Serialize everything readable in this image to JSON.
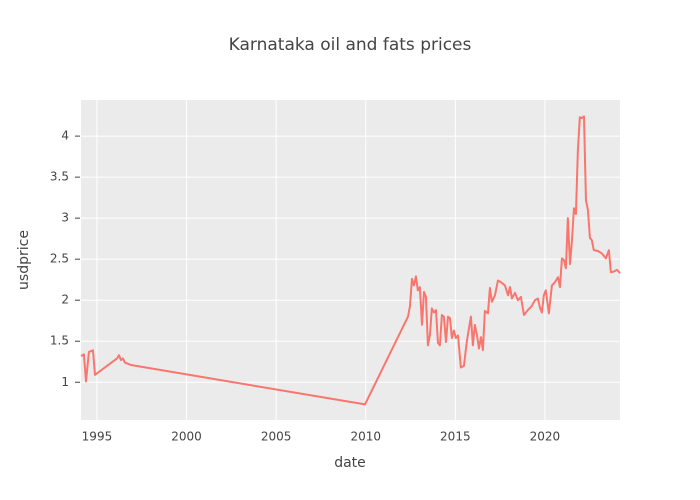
{
  "chart_data": {
    "type": "line",
    "title": "Karnataka oil and fats prices",
    "x_label": "date",
    "y_label": "usdprice",
    "color": "#F8766D",
    "grid": true,
    "xlim": [
      1994.11,
      2024.19
    ],
    "xticks": [
      1995,
      2000,
      2005,
      2010,
      2015,
      2020
    ],
    "ylim": [
      0.54,
      4.44
    ],
    "yticks": [
      1,
      1.5,
      2,
      2.5,
      3,
      3.5,
      4
    ],
    "x": [
      1994.11,
      1994.27,
      1994.39,
      1994.55,
      1994.78,
      1994.89,
      1996.12,
      1996.23,
      1996.34,
      1996.45,
      1996.56,
      1996.79,
      1996.9,
      2009.96,
      2012.36,
      2012.47,
      2012.58,
      2012.69,
      2012.8,
      2012.91,
      2013.02,
      2013.14,
      2013.25,
      2013.36,
      2013.47,
      2013.58,
      2013.69,
      2013.81,
      2013.92,
      2014.03,
      2014.14,
      2014.25,
      2014.36,
      2014.48,
      2014.59,
      2014.7,
      2014.81,
      2014.92,
      2015.03,
      2015.15,
      2015.31,
      2015.48,
      2015.65,
      2015.87,
      2015.98,
      2016.09,
      2016.21,
      2016.32,
      2016.43,
      2016.54,
      2016.65,
      2016.82,
      2016.93,
      2017.04,
      2017.21,
      2017.38,
      2017.54,
      2017.77,
      2017.94,
      2018.05,
      2018.16,
      2018.33,
      2018.49,
      2018.66,
      2018.83,
      2019.05,
      2019.27,
      2019.44,
      2019.61,
      2019.72,
      2019.83,
      2019.94,
      2020.05,
      2020.22,
      2020.39,
      2020.56,
      2020.73,
      2020.84,
      2020.95,
      2021.06,
      2021.17,
      2021.28,
      2021.4,
      2021.51,
      2021.62,
      2021.73,
      2021.84,
      2021.95,
      2022.06,
      2022.18,
      2022.29,
      2022.4,
      2022.51,
      2022.62,
      2022.73,
      2022.96,
      2023.18,
      2023.4,
      2023.57,
      2023.68,
      2023.85,
      2024.02,
      2024.19
    ],
    "values": [
      1.32,
      1.34,
      1.01,
      1.37,
      1.39,
      1.09,
      1.29,
      1.33,
      1.27,
      1.29,
      1.24,
      1.22,
      1.21,
      0.73,
      1.8,
      1.93,
      2.26,
      2.18,
      2.29,
      2.12,
      2.16,
      1.7,
      2.1,
      2.04,
      1.45,
      1.57,
      1.9,
      1.85,
      1.88,
      1.48,
      1.45,
      1.82,
      1.8,
      1.49,
      1.8,
      1.78,
      1.54,
      1.63,
      1.54,
      1.57,
      1.18,
      1.2,
      1.51,
      1.8,
      1.45,
      1.7,
      1.57,
      1.41,
      1.55,
      1.39,
      1.87,
      1.84,
      2.15,
      1.98,
      2.06,
      2.24,
      2.22,
      2.18,
      2.06,
      2.16,
      2.02,
      2.09,
      2.0,
      2.04,
      1.82,
      1.88,
      1.93,
      2.0,
      2.02,
      1.91,
      1.85,
      2.06,
      2.12,
      1.84,
      2.18,
      2.22,
      2.28,
      2.16,
      2.51,
      2.49,
      2.39,
      3.0,
      2.44,
      2.73,
      3.12,
      3.05,
      3.83,
      4.23,
      4.22,
      4.24,
      3.22,
      3.1,
      2.76,
      2.73,
      2.61,
      2.6,
      2.57,
      2.51,
      2.61,
      2.34,
      2.35,
      2.37,
      2.33
    ]
  }
}
